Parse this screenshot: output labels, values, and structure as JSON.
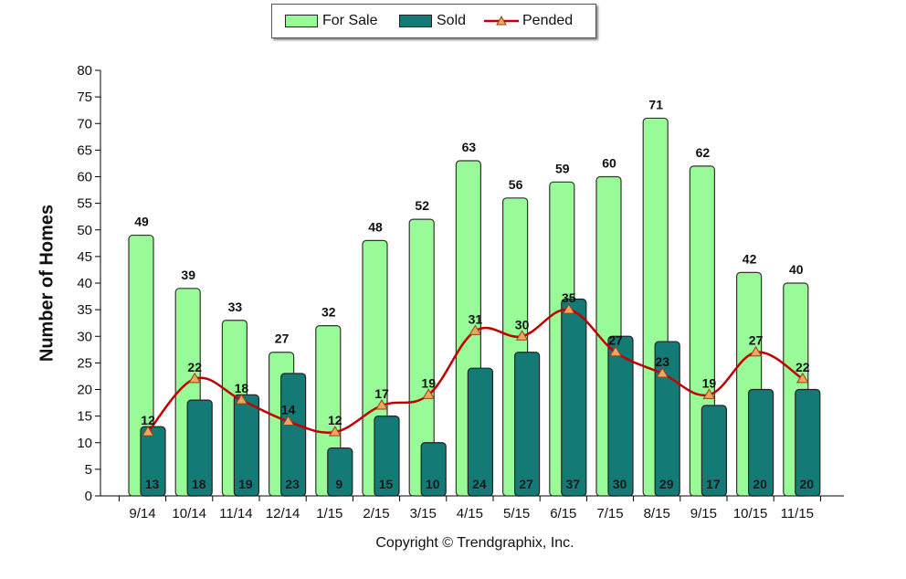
{
  "chart_data": {
    "type": "bar",
    "categories": [
      "9/14",
      "10/14",
      "11/14",
      "12/14",
      "1/15",
      "2/15",
      "3/15",
      "4/15",
      "5/15",
      "6/15",
      "7/15",
      "8/15",
      "9/15",
      "10/15",
      "11/15"
    ],
    "series": [
      {
        "name": "For Sale",
        "type": "bar",
        "color": "#98fb98",
        "values": [
          49,
          39,
          33,
          27,
          32,
          48,
          52,
          63,
          56,
          59,
          60,
          71,
          62,
          42,
          40
        ]
      },
      {
        "name": "Sold",
        "type": "bar",
        "color": "#147a76",
        "values": [
          13,
          18,
          19,
          23,
          9,
          15,
          10,
          24,
          27,
          37,
          30,
          29,
          17,
          20,
          20
        ]
      },
      {
        "name": "Pended",
        "type": "line",
        "color": "#c00000",
        "marker_color": "#f4a460",
        "values": [
          12,
          22,
          18,
          14,
          12,
          17,
          19,
          31,
          30,
          35,
          27,
          23,
          19,
          27,
          22
        ]
      }
    ],
    "ylabel": "Number of Homes",
    "xlabel": "",
    "ylim": [
      0,
      80
    ],
    "yticks": [
      0,
      5,
      10,
      15,
      20,
      25,
      30,
      35,
      40,
      45,
      50,
      55,
      60,
      65,
      70,
      75,
      80
    ],
    "legend_position": "top-center"
  },
  "footer": {
    "copyright": "Copyright © Trendgraphix, Inc."
  }
}
